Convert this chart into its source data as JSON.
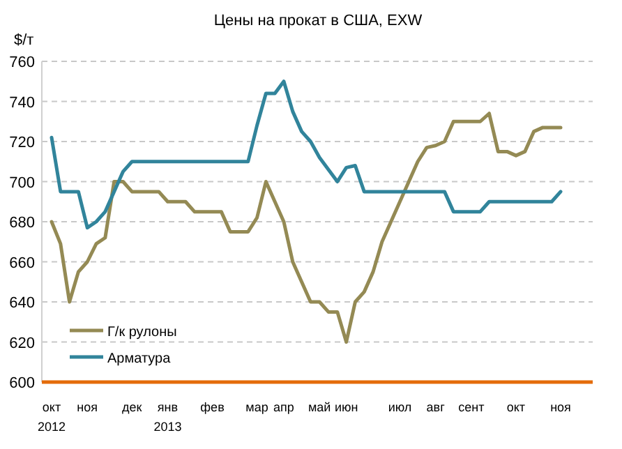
{
  "chart_data": {
    "type": "line",
    "title": "Цены на прокат в США, EXW",
    "ylabel": "$/т",
    "categories": [
      "окт\n2012",
      null,
      null,
      null,
      "ноя",
      null,
      null,
      null,
      null,
      "дек",
      null,
      null,
      null,
      "янв\n2013",
      null,
      null,
      null,
      null,
      "фев",
      null,
      null,
      null,
      null,
      "мар",
      null,
      null,
      "апр",
      null,
      null,
      null,
      "май",
      null,
      null,
      "июн",
      null,
      null,
      null,
      null,
      null,
      "июл",
      null,
      null,
      null,
      "авг",
      null,
      null,
      null,
      "сент",
      null,
      null,
      null,
      null,
      "окт",
      null,
      null,
      null,
      null,
      "ноя"
    ],
    "series": [
      {
        "name": "Г/к рулоны",
        "color": "#948a54",
        "values": [
          680,
          669,
          640,
          655,
          660,
          669,
          672,
          700,
          700,
          695,
          695,
          695,
          695,
          690,
          690,
          690,
          685,
          685,
          685,
          685,
          675,
          675,
          675,
          682,
          700,
          690,
          680,
          660,
          650,
          640,
          640,
          635,
          635,
          620,
          640,
          645,
          655,
          670,
          680,
          690,
          700,
          710,
          717,
          718,
          720,
          730,
          730,
          730,
          730,
          734,
          715,
          715,
          713,
          715,
          725,
          727,
          727,
          727
        ]
      },
      {
        "name": "Арматура",
        "color": "#31849b",
        "values": [
          722,
          695,
          695,
          695,
          677,
          680,
          685,
          695,
          705,
          710,
          710,
          710,
          710,
          710,
          710,
          710,
          710,
          710,
          710,
          710,
          710,
          710,
          710,
          728,
          744,
          744,
          750,
          735,
          725,
          720,
          712,
          706,
          700,
          707,
          708,
          695,
          695,
          695,
          695,
          695,
          695,
          695,
          695,
          695,
          695,
          685,
          685,
          685,
          685,
          690,
          690,
          690,
          690,
          690,
          690,
          690,
          690,
          695
        ]
      }
    ],
    "ylim": [
      600,
      760
    ],
    "yticks": [
      600,
      620,
      640,
      660,
      680,
      700,
      720,
      740,
      760
    ],
    "grid": "y",
    "legend": "bottom left"
  }
}
